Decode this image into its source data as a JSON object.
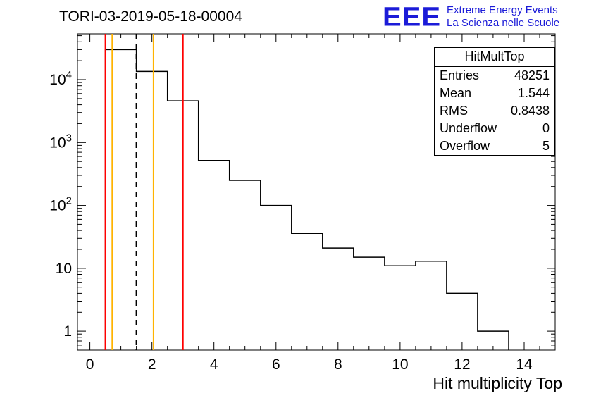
{
  "page": {
    "title": "TORI-03-2019-05-18-00004"
  },
  "logo": {
    "eee": "EEE",
    "line1": "Extreme Energy Events",
    "line2": "La Scienza nelle Scuole",
    "color": "#1b1bd8"
  },
  "stats": {
    "title": "HitMultTop",
    "rows": [
      {
        "label": "Entries",
        "value": "48251"
      },
      {
        "label": "Mean",
        "value": "1.544"
      },
      {
        "label": "RMS",
        "value": "0.8438"
      },
      {
        "label": "Underflow",
        "value": "0"
      },
      {
        "label": "Overflow",
        "value": "5"
      }
    ]
  },
  "chart_data": {
    "type": "bar",
    "subtype": "step-histogram",
    "title": "TORI-03-2019-05-18-00004",
    "xlabel": "Hit multiplicity Top",
    "ylabel": "",
    "yscale": "log",
    "xlim": [
      -0.4,
      15.0
    ],
    "ylim": [
      0.5,
      53500
    ],
    "x_major_ticks": [
      0,
      2,
      4,
      6,
      8,
      10,
      12,
      14
    ],
    "y_major_ticks": [
      1,
      10,
      100,
      1000,
      10000
    ],
    "bin_width": 1,
    "bin_centers": [
      1,
      2,
      3,
      4,
      5,
      6,
      7,
      8,
      9,
      10,
      11,
      12,
      13
    ],
    "counts": [
      30000,
      13500,
      4600,
      520,
      250,
      100,
      36,
      21,
      15,
      11,
      13,
      4,
      1
    ],
    "line_color": "#000000",
    "grid": false,
    "legend": false,
    "markers": [
      {
        "x": 0.5,
        "color": "#ff0000",
        "style": "solid",
        "name": "red-line-low"
      },
      {
        "x": 0.72,
        "color": "#ffb300",
        "style": "solid",
        "name": "orange-line-low"
      },
      {
        "x": 1.5,
        "color": "#000000",
        "style": "dashed",
        "name": "mean-dashed-line"
      },
      {
        "x": 2.05,
        "color": "#ffb300",
        "style": "solid",
        "name": "orange-line-high"
      },
      {
        "x": 3.0,
        "color": "#ff0000",
        "style": "solid",
        "name": "red-line-high"
      }
    ]
  }
}
